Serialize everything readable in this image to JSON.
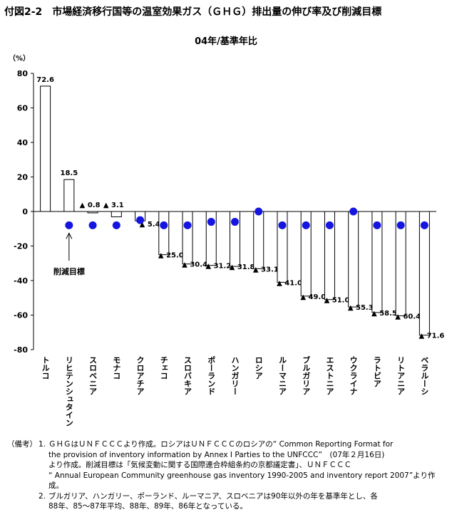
{
  "title": "付図2-2　市場経済移行国等の温室効果ガス（ＧＨＧ）排出量の伸び率及び削減目標",
  "subtitle": "04年/基準年比",
  "chart_data": {
    "type": "bar",
    "unit_label": "（%）",
    "ylim": [
      -80,
      80
    ],
    "yticks": [
      80,
      60,
      40,
      20,
      0,
      -20,
      -40,
      -60,
      -80
    ],
    "categories": [
      "トルコ",
      "リヒテンシュタイン",
      "スロベニア",
      "モナコ",
      "クロアチア",
      "チェコ",
      "スロバキア",
      "ポーランド",
      "ハンガリー",
      "ロシア",
      "ルーマニア",
      "ブルガリア",
      "エストニア",
      "ウクライナ",
      "ラトビア",
      "リトアニア",
      "ベラルーシ"
    ],
    "values": [
      72.6,
      18.5,
      -0.8,
      -3.1,
      -5.4,
      -25.0,
      -30.4,
      -31.2,
      -31.8,
      -33.1,
      -41.0,
      -49.0,
      -51.0,
      -55.3,
      -58.5,
      -60.4,
      -71.6
    ],
    "data_labels": [
      "72.6",
      "18.5",
      "▲ 0.8",
      "▲ 3.1",
      "▲ 5.4",
      "▲ 25.0",
      "▲ 30.4",
      "▲ 31.2",
      "▲ 31.8",
      "▲ 33.1",
      "▲ 41.0",
      "▲ 49.0",
      "▲ 51.0",
      "▲ 55.3",
      "▲ 58.5",
      "▲ 60.4",
      "▲ 71.6"
    ],
    "targets": [
      null,
      -8,
      -8,
      -8,
      -5,
      -8,
      -8,
      -6,
      -6,
      0,
      -8,
      -8,
      -8,
      0,
      -8,
      -8,
      -8
    ],
    "target_color": "#1515e0",
    "annotation": "削減目標"
  },
  "notes": {
    "label": "（備考）",
    "items": [
      {
        "num": "1.",
        "lines": [
          "ＧＨＧはＵＮＦＣＣＣより作成。ロシアはＵＮＦＣＣＣのロシアの“ Common Reporting Format for",
          "the provision of inventory information by Annex Ⅰ Parties to the UNFCCC”　(07年２月16日)",
          "より作成。削減目標は「気候変動に関する国際連合枠組条約の京都議定書」、ＵＮＦＣＣＣ",
          "“ Annual European Community greenhouse gas inventory 1990-2005 and inventory report 2007”より作成。"
        ]
      },
      {
        "num": "2.",
        "lines": [
          "ブルガリア、ハンガリー、ポーランド、ルーマニア、スロベニアは90年以外の年を基準年とし、各",
          "88年、85～87年平均、88年、89年、86年となっている。"
        ]
      }
    ]
  }
}
